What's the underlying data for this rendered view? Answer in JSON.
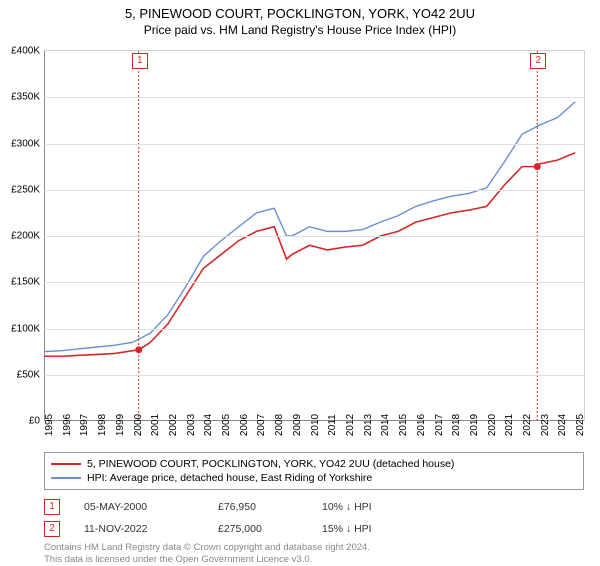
{
  "title": "5, PINEWOOD COURT, POCKLINGTON, YORK, YO42 2UU",
  "subtitle": "Price paid vs. HM Land Registry's House Price Index (HPI)",
  "chart": {
    "type": "line",
    "background_color": "#ffffff",
    "grid_color": "#e0e0e0",
    "axis_color": "#888888",
    "x_range": [
      1995,
      2025.5
    ],
    "y_range": [
      0,
      400000
    ],
    "y_ticks": [
      0,
      50000,
      100000,
      150000,
      200000,
      250000,
      300000,
      350000,
      400000
    ],
    "y_tick_labels": [
      "£0",
      "£50K",
      "£100K",
      "£150K",
      "£200K",
      "£250K",
      "£300K",
      "£350K",
      "£400K"
    ],
    "x_ticks": [
      1995,
      1996,
      1997,
      1998,
      1999,
      2000,
      2001,
      2002,
      2003,
      2004,
      2005,
      2006,
      2007,
      2008,
      2009,
      2010,
      2011,
      2012,
      2013,
      2014,
      2015,
      2016,
      2017,
      2018,
      2019,
      2020,
      2021,
      2022,
      2023,
      2024,
      2025
    ],
    "y_tick_fontsize": 10,
    "x_tick_fontsize": 10,
    "x_tick_rotation": -90,
    "series": [
      {
        "name": "price_paid",
        "label": "5, PINEWOOD COURT, POCKLINGTON, YORK, YO42 2UU (detached house)",
        "color": "#d62728",
        "line_width": 1.6,
        "data": [
          [
            1995,
            70000
          ],
          [
            1996,
            70000
          ],
          [
            1997,
            71000
          ],
          [
            1998,
            72000
          ],
          [
            1999,
            73000
          ],
          [
            2000.35,
            76950
          ],
          [
            2001,
            85000
          ],
          [
            2002,
            105000
          ],
          [
            2003,
            135000
          ],
          [
            2004,
            165000
          ],
          [
            2005,
            180000
          ],
          [
            2006,
            195000
          ],
          [
            2007,
            205000
          ],
          [
            2008,
            210000
          ],
          [
            2008.7,
            175000
          ],
          [
            2009,
            180000
          ],
          [
            2010,
            190000
          ],
          [
            2011,
            185000
          ],
          [
            2012,
            188000
          ],
          [
            2013,
            190000
          ],
          [
            2014,
            200000
          ],
          [
            2015,
            205000
          ],
          [
            2016,
            215000
          ],
          [
            2017,
            220000
          ],
          [
            2018,
            225000
          ],
          [
            2019,
            228000
          ],
          [
            2020,
            232000
          ],
          [
            2021,
            255000
          ],
          [
            2022,
            275000
          ],
          [
            2022.86,
            275000
          ],
          [
            2023,
            278000
          ],
          [
            2024,
            282000
          ],
          [
            2025,
            290000
          ]
        ]
      },
      {
        "name": "hpi",
        "label": "HPI: Average price, detached house, East Riding of Yorkshire",
        "color": "#6a8fd4",
        "line_width": 1.4,
        "data": [
          [
            1995,
            75000
          ],
          [
            1996,
            76000
          ],
          [
            1997,
            78000
          ],
          [
            1998,
            80000
          ],
          [
            1999,
            82000
          ],
          [
            2000,
            85000
          ],
          [
            2001,
            95000
          ],
          [
            2002,
            115000
          ],
          [
            2003,
            145000
          ],
          [
            2004,
            178000
          ],
          [
            2005,
            195000
          ],
          [
            2006,
            210000
          ],
          [
            2007,
            225000
          ],
          [
            2008,
            230000
          ],
          [
            2008.7,
            200000
          ],
          [
            2009,
            200000
          ],
          [
            2010,
            210000
          ],
          [
            2011,
            205000
          ],
          [
            2012,
            205000
          ],
          [
            2013,
            207000
          ],
          [
            2014,
            215000
          ],
          [
            2015,
            222000
          ],
          [
            2016,
            232000
          ],
          [
            2017,
            238000
          ],
          [
            2018,
            243000
          ],
          [
            2019,
            246000
          ],
          [
            2020,
            252000
          ],
          [
            2021,
            280000
          ],
          [
            2022,
            310000
          ],
          [
            2023,
            320000
          ],
          [
            2024,
            328000
          ],
          [
            2025,
            345000
          ]
        ]
      }
    ],
    "markers": [
      {
        "id": "1",
        "x": 2000.35,
        "y": 76950,
        "color": "#d62728",
        "box_top": true
      },
      {
        "id": "2",
        "x": 2022.86,
        "y": 275000,
        "color": "#d62728",
        "box_top": true
      }
    ],
    "marker_vline_color": "#d62728",
    "marker_dot_radius": 3.5
  },
  "legend": {
    "border_color": "#999999",
    "fontsize": 10.5
  },
  "transactions": [
    {
      "id": "1",
      "date": "05-MAY-2000",
      "price": "£76,950",
      "pct": "10% ↓ HPI",
      "color": "#d62728"
    },
    {
      "id": "2",
      "date": "11-NOV-2022",
      "price": "£275,000",
      "pct": "15% ↓ HPI",
      "color": "#d62728"
    }
  ],
  "credits_line1": "Contains HM Land Registry data © Crown copyright and database right 2024.",
  "credits_line2": "This data is licensed under the Open Government Licence v3.0."
}
